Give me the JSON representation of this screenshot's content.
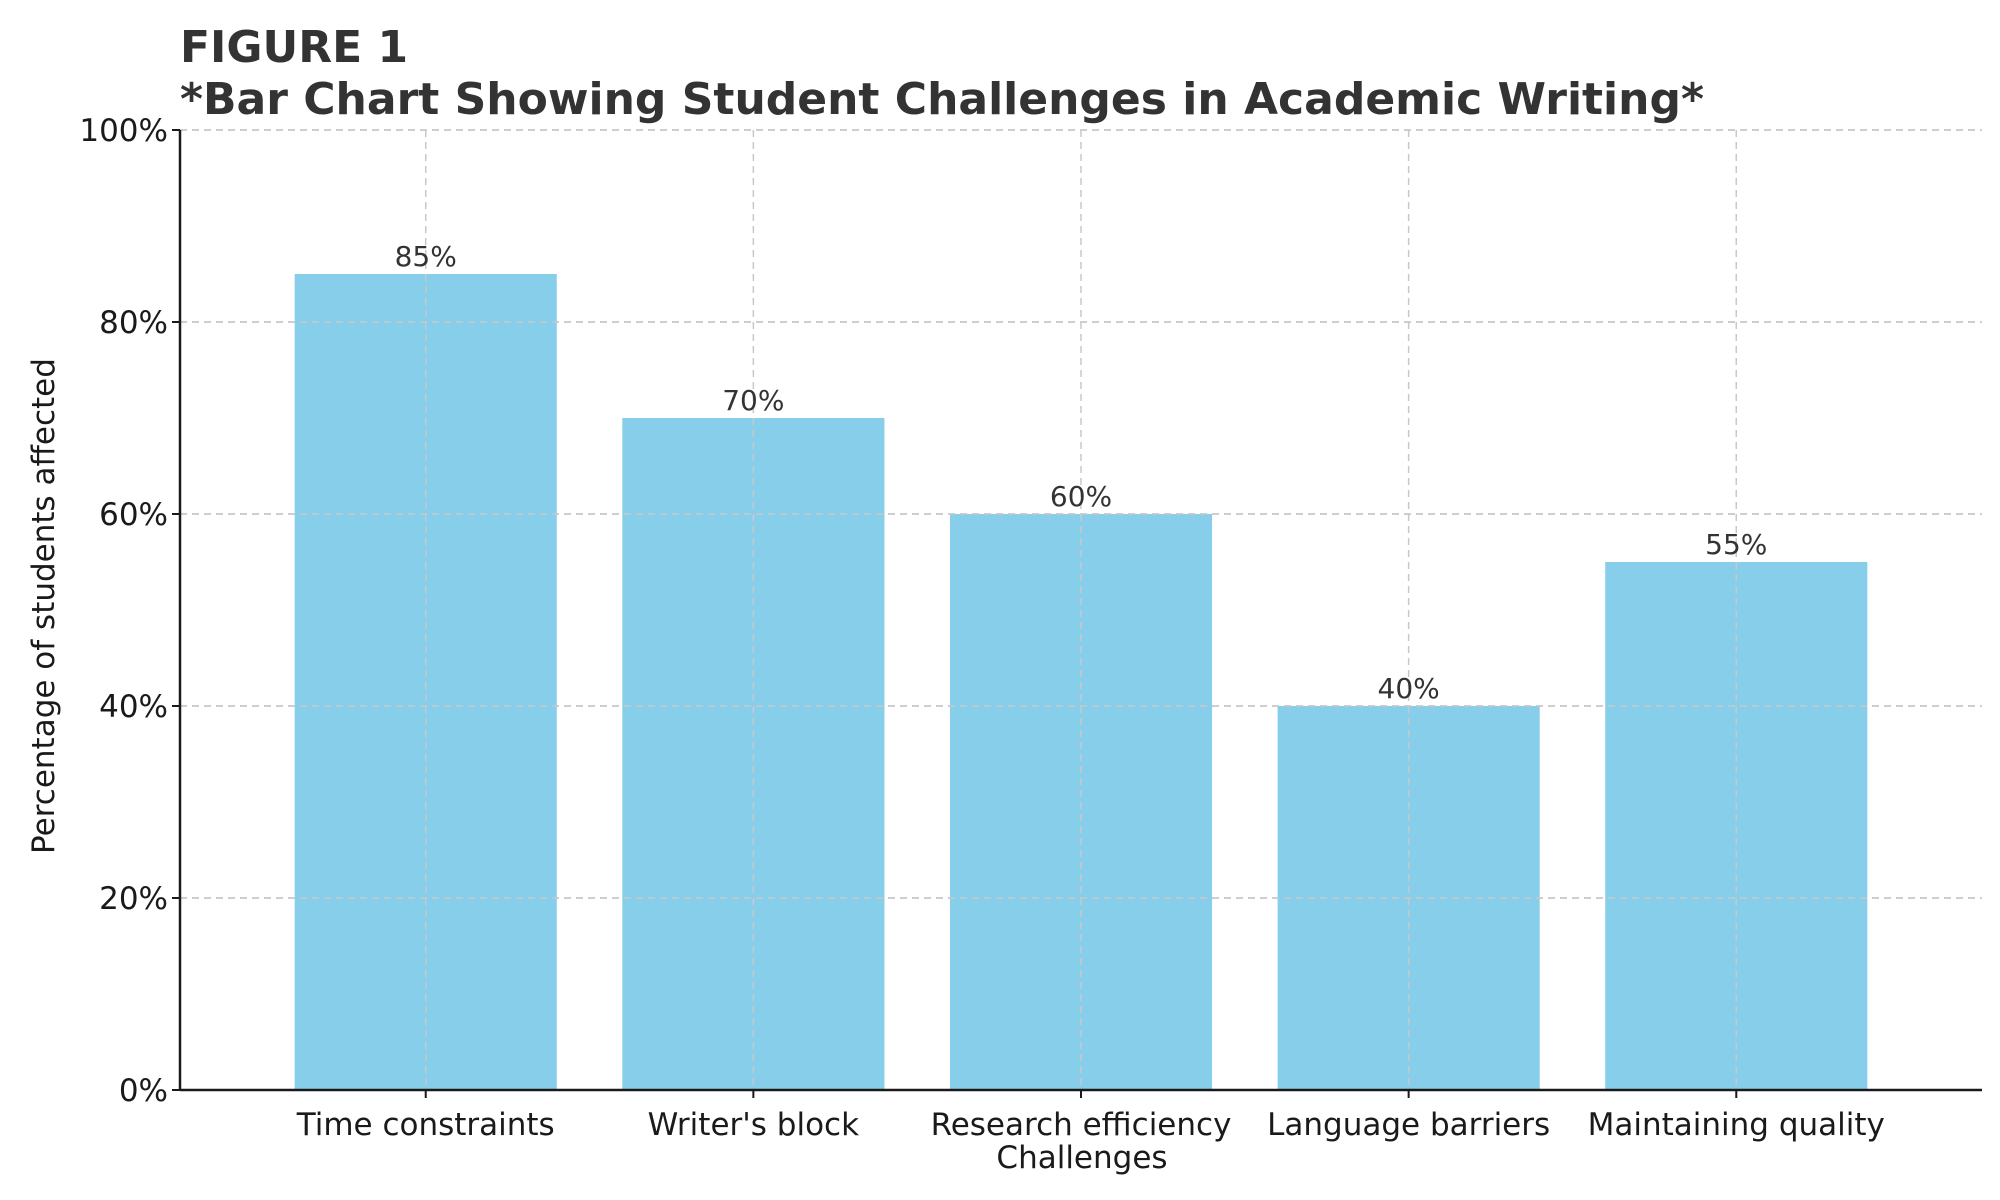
{
  "chart_data": {
    "type": "bar",
    "title": "FIGURE 1",
    "subtitle": "*Bar Chart Showing Student Challenges in Academic Writing*",
    "xlabel": "Challenges",
    "ylabel": "Percentage of students affected",
    "categories": [
      "Time constraints",
      "Writer's block",
      "Research efficiency",
      "Language barriers",
      "Maintaining quality"
    ],
    "values": [
      85,
      70,
      60,
      40,
      55
    ],
    "data_labels": [
      "85%",
      "70%",
      "60%",
      "40%",
      "55%"
    ],
    "ylim": [
      0,
      100
    ],
    "yticks": [
      0,
      20,
      40,
      60,
      80,
      100
    ],
    "ytick_labels": [
      "0%",
      "20%",
      "40%",
      "60%",
      "80%",
      "100%"
    ],
    "grid": true,
    "bar_color": "#87CEEB"
  }
}
